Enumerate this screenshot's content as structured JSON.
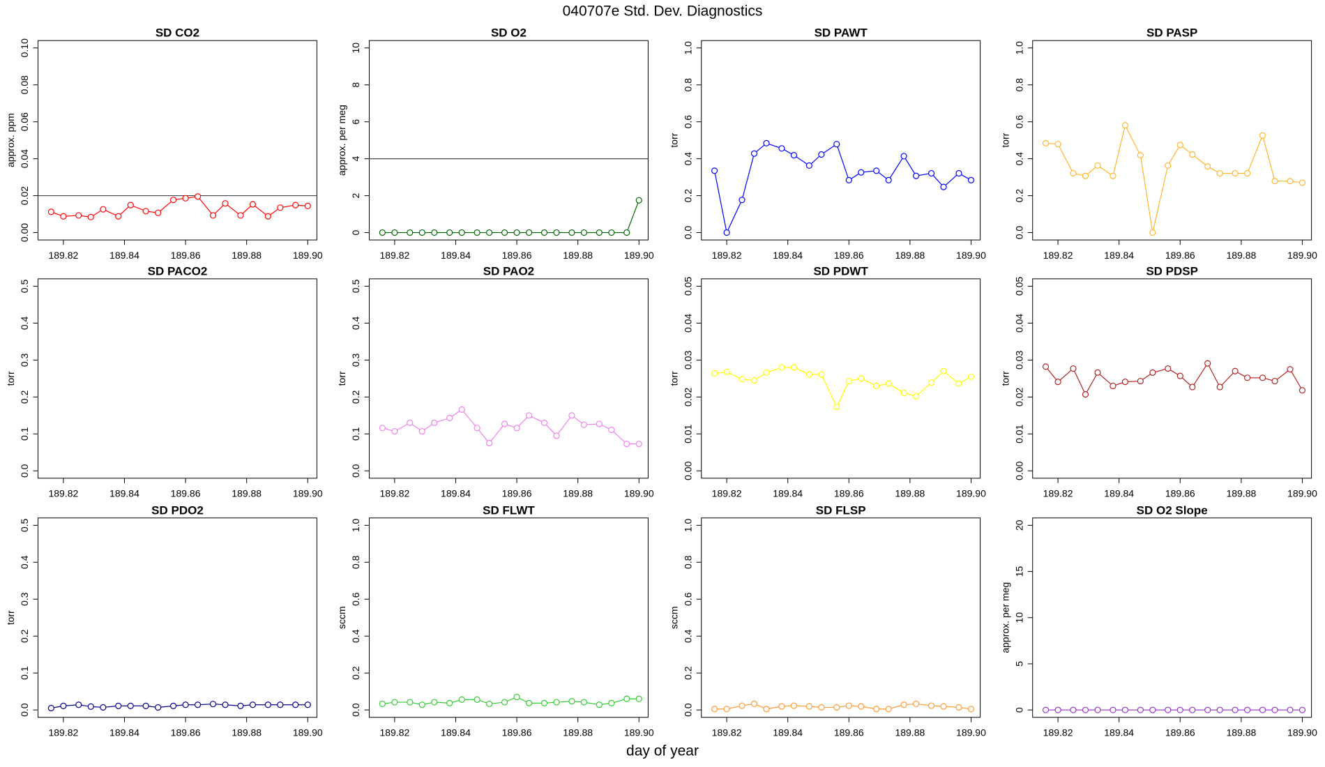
{
  "title": "040707e   Std. Dev. Diagnostics",
  "xlabel": "day of year",
  "chart_data": [
    {
      "type": "line",
      "title": "SD CO2",
      "ylabel": "approx. ppm",
      "color": "#ff0000",
      "hline": 0.02,
      "x": [
        189.816,
        189.82,
        189.825,
        189.829,
        189.833,
        189.838,
        189.842,
        189.847,
        189.851,
        189.856,
        189.86,
        189.864,
        189.869,
        189.873,
        189.878,
        189.882,
        189.887,
        189.891,
        189.896,
        189.9
      ],
      "values": [
        0.0112,
        0.0088,
        0.0093,
        0.0084,
        0.0126,
        0.0088,
        0.0149,
        0.0116,
        0.0107,
        0.0177,
        0.0186,
        0.0195,
        0.0093,
        0.0158,
        0.0093,
        0.0153,
        0.0088,
        0.0135,
        0.0149,
        0.0144
      ],
      "xlim": [
        189.8117,
        189.903
      ],
      "xticks": [
        189.82,
        189.84,
        189.86,
        189.88,
        {
          "value": 189.9,
          "label": "189.90"
        }
      ],
      "ylim": [
        -0.004,
        0.104
      ],
      "yticks": [
        {
          "value": 0,
          "label": "0.00"
        },
        {
          "value": 0.02,
          "label": "0.02"
        },
        {
          "value": 0.04,
          "label": "0.04"
        },
        {
          "value": 0.06,
          "label": "0.06"
        },
        {
          "value": 0.08,
          "label": "0.08"
        },
        {
          "value": 0.1,
          "label": "0.10"
        }
      ]
    },
    {
      "type": "line",
      "title": "SD O2",
      "ylabel": "approx. per meg",
      "color": "#006400",
      "hline": 4,
      "x": [
        189.816,
        189.82,
        189.825,
        189.829,
        189.833,
        189.838,
        189.842,
        189.847,
        189.851,
        189.856,
        189.86,
        189.864,
        189.869,
        189.873,
        189.878,
        189.882,
        189.887,
        189.891,
        189.896,
        189.9
      ],
      "values": [
        0,
        0,
        0,
        0,
        0,
        0,
        0,
        0,
        0,
        0,
        0,
        0,
        0,
        0,
        0,
        0,
        0,
        0,
        0,
        1.75
      ],
      "xlim": [
        189.8117,
        189.903
      ],
      "xticks": [
        189.82,
        189.84,
        189.86,
        189.88,
        {
          "value": 189.9,
          "label": "189.90"
        }
      ],
      "ylim": [
        -0.4,
        10.4
      ],
      "yticks": [
        0,
        2,
        4,
        6,
        8,
        10
      ]
    },
    {
      "type": "line",
      "title": "SD PAWT",
      "ylabel": "torr",
      "color": "#0000ff",
      "x": [
        189.816,
        189.82,
        189.825,
        189.829,
        189.833,
        189.838,
        189.842,
        189.847,
        189.851,
        189.856,
        189.86,
        189.864,
        189.869,
        189.873,
        189.878,
        189.882,
        189.887,
        189.891,
        189.896,
        189.9
      ],
      "values": [
        0.335,
        0,
        0.177,
        0.428,
        0.484,
        0.456,
        0.419,
        0.363,
        0.423,
        0.479,
        0.284,
        0.326,
        0.335,
        0.284,
        0.414,
        0.307,
        0.321,
        0.247,
        0.321,
        0.284
      ],
      "xlim": [
        189.8117,
        189.903
      ],
      "xticks": [
        189.82,
        189.84,
        189.86,
        189.88,
        {
          "value": 189.9,
          "label": "189.90"
        }
      ],
      "ylim": [
        -0.04,
        1.04
      ],
      "yticks": [
        {
          "value": 0,
          "label": "0.0"
        },
        0.2,
        0.4,
        0.6,
        0.8,
        {
          "value": 1,
          "label": "1.0"
        }
      ]
    },
    {
      "type": "line",
      "title": "SD PASP",
      "ylabel": "torr",
      "color": "#ffb52e",
      "x": [
        189.816,
        189.82,
        189.825,
        189.829,
        189.833,
        189.838,
        189.842,
        189.847,
        189.851,
        189.856,
        189.86,
        189.864,
        189.869,
        189.873,
        189.878,
        189.882,
        189.887,
        189.891,
        189.896,
        189.9
      ],
      "values": [
        0.484,
        0.479,
        0.321,
        0.307,
        0.363,
        0.307,
        0.581,
        0.419,
        0,
        0.363,
        0.474,
        0.423,
        0.358,
        0.321,
        0.321,
        0.321,
        0.526,
        0.279,
        0.279,
        0.27
      ],
      "xlim": [
        189.8117,
        189.903
      ],
      "xticks": [
        189.82,
        189.84,
        189.86,
        189.88,
        {
          "value": 189.9,
          "label": "189.90"
        }
      ],
      "ylim": [
        -0.04,
        1.04
      ],
      "yticks": [
        {
          "value": 0,
          "label": "0.0"
        },
        0.2,
        0.4,
        0.6,
        0.8,
        {
          "value": 1,
          "label": "1.0"
        }
      ]
    },
    {
      "type": "line",
      "title": "SD PACO2",
      "ylabel": "torr",
      "x": [
        189.816,
        189.82,
        189.825,
        189.829,
        189.833,
        189.838,
        189.842,
        189.847,
        189.851,
        189.856,
        189.86,
        189.864,
        189.869,
        189.873,
        189.878,
        189.882,
        189.887,
        189.891,
        189.896,
        189.9
      ],
      "values": [
        null,
        null,
        null,
        null,
        null,
        null,
        null,
        null,
        null,
        null,
        null,
        null,
        null,
        null,
        null,
        null,
        null,
        null,
        null,
        null
      ],
      "xlim": [
        189.8117,
        189.903
      ],
      "xticks": [
        189.82,
        189.84,
        189.86,
        189.88,
        {
          "value": 189.9,
          "label": "189.90"
        }
      ],
      "ylim": [
        -0.02,
        0.52
      ],
      "yticks": [
        {
          "value": 0,
          "label": "0.0"
        },
        0.1,
        0.2,
        0.3,
        0.4,
        0.5
      ]
    },
    {
      "type": "line",
      "title": "SD PAO2",
      "ylabel": "torr",
      "color": "#ee82ee",
      "x": [
        189.816,
        189.82,
        189.825,
        189.829,
        189.833,
        189.838,
        189.842,
        189.847,
        189.851,
        189.856,
        189.86,
        189.864,
        189.869,
        189.873,
        189.878,
        189.882,
        189.887,
        189.891,
        189.896,
        189.9
      ],
      "values": [
        0.116,
        0.107,
        0.13,
        0.107,
        0.13,
        0.143,
        0.166,
        0.116,
        0.075,
        0.127,
        0.116,
        0.15,
        0.13,
        0.095,
        0.15,
        0.125,
        0.127,
        0.111,
        0.073,
        0.073
      ],
      "xlim": [
        189.8117,
        189.903
      ],
      "xticks": [
        189.82,
        189.84,
        189.86,
        189.88,
        {
          "value": 189.9,
          "label": "189.90"
        }
      ],
      "ylim": [
        -0.02,
        0.52
      ],
      "yticks": [
        {
          "value": 0,
          "label": "0.0"
        },
        0.1,
        0.2,
        0.3,
        0.4,
        0.5
      ]
    },
    {
      "type": "line",
      "title": "SD PDWT",
      "ylabel": "torr",
      "color": "#ffff00",
      "x": [
        189.816,
        189.82,
        189.825,
        189.829,
        189.833,
        189.838,
        189.842,
        189.847,
        189.851,
        189.856,
        189.86,
        189.864,
        189.869,
        189.873,
        189.878,
        189.882,
        189.887,
        189.891,
        189.896,
        189.9
      ],
      "values": [
        0.0264,
        0.0268,
        0.0248,
        0.0245,
        0.0266,
        0.028,
        0.028,
        0.0261,
        0.0261,
        0.0173,
        0.0243,
        0.025,
        0.023,
        0.0236,
        0.0211,
        0.0202,
        0.0239,
        0.027,
        0.0236,
        0.0255
      ],
      "xlim": [
        189.8117,
        189.903
      ],
      "xticks": [
        189.82,
        189.84,
        189.86,
        189.88,
        {
          "value": 189.9,
          "label": "189.90"
        }
      ],
      "ylim": [
        -0.002,
        0.052
      ],
      "yticks": [
        {
          "value": 0,
          "label": "0.00"
        },
        0.01,
        0.02,
        0.03,
        0.04,
        0.05
      ]
    },
    {
      "type": "line",
      "title": "SD PDSP",
      "ylabel": "torr",
      "color": "#b22222",
      "x": [
        189.816,
        189.82,
        189.825,
        189.829,
        189.833,
        189.838,
        189.842,
        189.847,
        189.851,
        189.856,
        189.86,
        189.864,
        189.869,
        189.873,
        189.878,
        189.882,
        189.887,
        189.891,
        189.896,
        189.9
      ],
      "values": [
        0.0282,
        0.0241,
        0.0277,
        0.0207,
        0.0266,
        0.023,
        0.0241,
        0.0243,
        0.0266,
        0.0277,
        0.0257,
        0.0227,
        0.0291,
        0.0227,
        0.027,
        0.0252,
        0.0252,
        0.0243,
        0.0275,
        0.0218
      ],
      "xlim": [
        189.8117,
        189.903
      ],
      "xticks": [
        189.82,
        189.84,
        189.86,
        189.88,
        {
          "value": 189.9,
          "label": "189.90"
        }
      ],
      "ylim": [
        -0.002,
        0.052
      ],
      "yticks": [
        {
          "value": 0,
          "label": "0.00"
        },
        0.01,
        0.02,
        0.03,
        0.04,
        0.05
      ]
    },
    {
      "type": "line",
      "title": "SD PDO2",
      "ylabel": "torr",
      "color": "#00008b",
      "x": [
        189.816,
        189.82,
        189.825,
        189.829,
        189.833,
        189.838,
        189.842,
        189.847,
        189.851,
        189.856,
        189.86,
        189.864,
        189.869,
        189.873,
        189.878,
        189.882,
        189.887,
        189.891,
        189.896,
        189.9
      ],
      "values": [
        0.005,
        0.011,
        0.014,
        0.009,
        0.007,
        0.011,
        0.011,
        0.011,
        0.007,
        0.011,
        0.014,
        0.014,
        0.016,
        0.014,
        0.011,
        0.014,
        0.014,
        0.014,
        0.014,
        0.014
      ],
      "xlim": [
        189.8117,
        189.903
      ],
      "xticks": [
        189.82,
        189.84,
        189.86,
        189.88,
        {
          "value": 189.9,
          "label": "189.90"
        }
      ],
      "ylim": [
        -0.02,
        0.52
      ],
      "yticks": [
        {
          "value": 0,
          "label": "0.0"
        },
        0.1,
        0.2,
        0.3,
        0.4,
        0.5
      ]
    },
    {
      "type": "line",
      "title": "SD FLWT",
      "ylabel": "sccm",
      "color": "#32cd32",
      "x": [
        189.816,
        189.82,
        189.825,
        189.829,
        189.833,
        189.838,
        189.842,
        189.847,
        189.851,
        189.856,
        189.86,
        189.864,
        189.869,
        189.873,
        189.878,
        189.882,
        189.887,
        189.891,
        189.896,
        189.9
      ],
      "values": [
        0.033,
        0.042,
        0.042,
        0.028,
        0.042,
        0.037,
        0.056,
        0.056,
        0.033,
        0.042,
        0.07,
        0.037,
        0.037,
        0.042,
        0.047,
        0.042,
        0.028,
        0.037,
        0.06,
        0.06
      ],
      "xlim": [
        189.8117,
        189.903
      ],
      "xticks": [
        189.82,
        189.84,
        189.86,
        189.88,
        {
          "value": 189.9,
          "label": "189.90"
        }
      ],
      "ylim": [
        -0.04,
        1.04
      ],
      "yticks": [
        {
          "value": 0,
          "label": "0.0"
        },
        0.2,
        0.4,
        0.6,
        0.8,
        {
          "value": 1,
          "label": "1.0"
        }
      ]
    },
    {
      "type": "line",
      "title": "SD FLSP",
      "ylabel": "sccm",
      "color": "#ff9933",
      "x": [
        189.816,
        189.82,
        189.825,
        189.829,
        189.833,
        189.838,
        189.842,
        189.847,
        189.851,
        189.856,
        189.86,
        189.864,
        189.869,
        189.873,
        189.878,
        189.882,
        189.887,
        189.891,
        189.896,
        189.9
      ],
      "values": [
        0.005,
        0.005,
        0.023,
        0.033,
        0.005,
        0.019,
        0.023,
        0.019,
        0.014,
        0.014,
        0.023,
        0.019,
        0.005,
        0.005,
        0.028,
        0.033,
        0.023,
        0.019,
        0.014,
        0.005
      ],
      "xlim": [
        189.8117,
        189.903
      ],
      "xticks": [
        189.82,
        189.84,
        189.86,
        189.88,
        {
          "value": 189.9,
          "label": "189.90"
        }
      ],
      "ylim": [
        -0.04,
        1.04
      ],
      "yticks": [
        {
          "value": 0,
          "label": "0.0"
        },
        0.2,
        0.4,
        0.6,
        0.8,
        {
          "value": 1,
          "label": "1.0"
        }
      ]
    },
    {
      "type": "line",
      "title": "SD O2 Slope",
      "ylabel": "approx. per meg",
      "color": "#9932cc",
      "x": [
        189.816,
        189.82,
        189.825,
        189.829,
        189.833,
        189.838,
        189.842,
        189.847,
        189.851,
        189.856,
        189.86,
        189.864,
        189.869,
        189.873,
        189.878,
        189.882,
        189.887,
        189.891,
        189.896,
        189.9
      ],
      "values": [
        0,
        0,
        0,
        0,
        0,
        0,
        0,
        0,
        0,
        0,
        0,
        0,
        0,
        0,
        0,
        0,
        0,
        0,
        0,
        0
      ],
      "xlim": [
        189.8117,
        189.903
      ],
      "xticks": [
        189.82,
        189.84,
        189.86,
        189.88,
        {
          "value": 189.9,
          "label": "189.90"
        }
      ],
      "ylim": [
        -0.8,
        20.8
      ],
      "yticks": [
        0,
        5,
        10,
        15,
        20
      ]
    }
  ]
}
